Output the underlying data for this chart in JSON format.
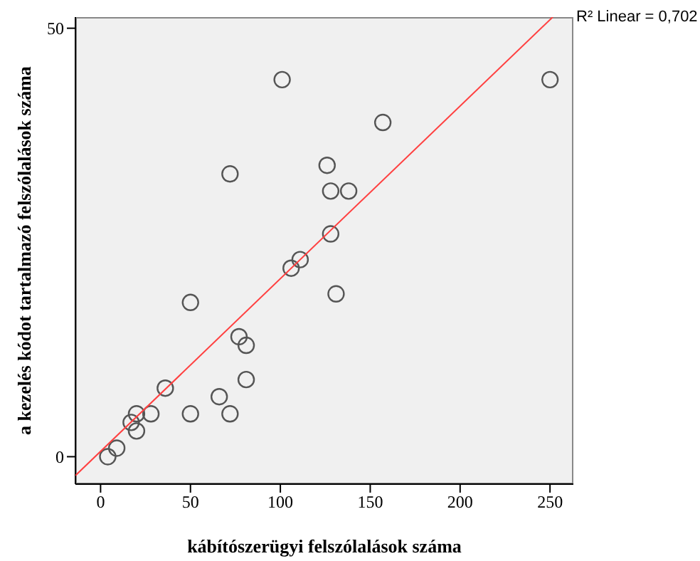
{
  "chart_data": {
    "type": "scatter",
    "xlabel": "kábítószerügyi felszólalások száma",
    "ylabel": "a kezelés kódot tartalmazó felszólalások száma",
    "annotations": [
      "R² Linear = 0,702"
    ],
    "xlim": [
      -14,
      263
    ],
    "ylim": [
      -3.2,
      51.3
    ],
    "xticks": [
      0,
      50,
      100,
      150,
      200,
      250
    ],
    "yticks": [
      0,
      50
    ],
    "grid": false,
    "marker": "circle",
    "series": [
      {
        "color": "#555555",
        "x": [
          4,
          9,
          17,
          20,
          20,
          28,
          36,
          50,
          50,
          66,
          72,
          72,
          77,
          81,
          81,
          101,
          106,
          111,
          126,
          128,
          138,
          128,
          131,
          157,
          250
        ],
        "values": [
          0,
          1,
          4,
          5,
          3,
          5,
          8,
          18,
          5,
          7,
          5,
          33,
          14,
          13,
          9,
          44,
          22,
          23,
          34,
          31,
          31,
          26,
          19,
          39,
          44
        ]
      },
      {
        "type": "line",
        "marker": "none",
        "color": "#ff4040",
        "line_style": "solid",
        "x": [
          -14,
          251.5
        ],
        "values": [
          -2.2,
          51.3
        ]
      }
    ]
  }
}
